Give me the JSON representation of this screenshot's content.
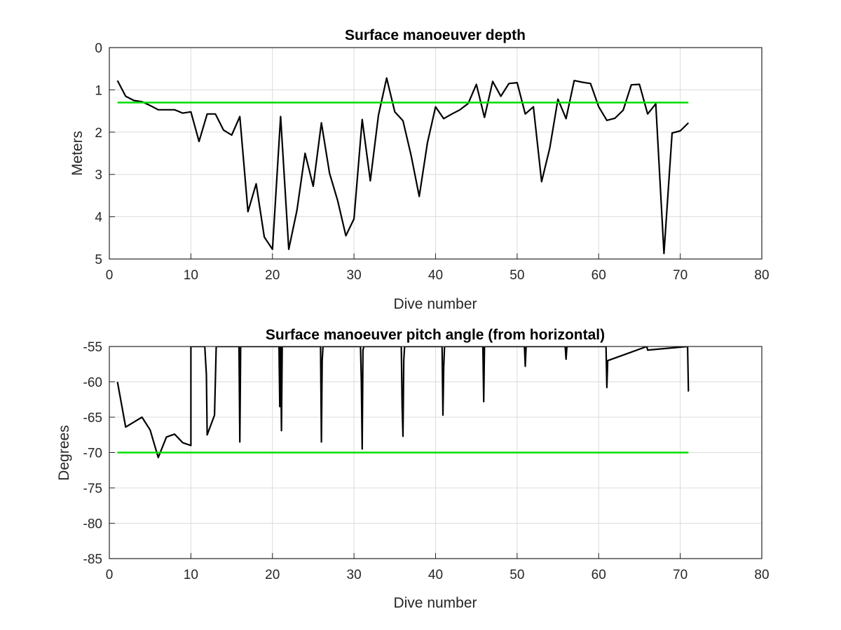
{
  "chart_data": [
    {
      "type": "line",
      "title": "Surface manoeuver depth",
      "xlabel": "Dive number",
      "ylabel": "Meters",
      "xlim": [
        0,
        80
      ],
      "ylim": [
        0,
        5
      ],
      "y_reversed": true,
      "grid": true,
      "xticks": [
        "0",
        "10",
        "20",
        "30",
        "40",
        "50",
        "60",
        "70",
        "80"
      ],
      "yticks": [
        "0",
        "1",
        "2",
        "3",
        "4",
        "5"
      ],
      "series": [
        {
          "color": "#000000",
          "x": [
            1,
            2,
            3,
            4,
            5,
            6,
            7,
            8,
            9,
            10,
            11,
            12,
            13,
            14,
            15,
            16,
            17,
            18,
            19,
            20,
            21,
            22,
            23,
            24,
            25,
            26,
            27,
            28,
            29,
            30,
            31,
            32,
            33,
            34,
            35,
            36,
            37,
            38,
            39,
            40,
            41,
            42,
            43,
            44,
            45,
            46,
            47,
            48,
            49,
            50,
            51,
            52,
            53,
            54,
            55,
            56,
            57,
            58,
            59,
            60,
            61,
            62,
            63,
            64,
            65,
            66,
            67,
            68,
            69,
            70,
            71
          ],
          "y": [
            0.78,
            1.15,
            1.25,
            1.28,
            1.37,
            1.47,
            1.47,
            1.47,
            1.55,
            1.52,
            2.22,
            1.57,
            1.57,
            1.95,
            2.07,
            1.63,
            3.88,
            3.22,
            4.48,
            4.77,
            1.63,
            4.77,
            3.85,
            2.5,
            3.28,
            1.78,
            2.97,
            3.62,
            4.45,
            4.05,
            1.7,
            3.15,
            1.6,
            0.72,
            1.52,
            1.73,
            2.55,
            3.52,
            2.25,
            1.4,
            1.68,
            1.57,
            1.47,
            1.32,
            0.87,
            1.65,
            0.8,
            1.15,
            0.85,
            0.83,
            1.57,
            1.4,
            3.17,
            2.38,
            1.22,
            1.68,
            0.78,
            0.82,
            0.85,
            1.4,
            1.72,
            1.67,
            1.48,
            0.88,
            0.87,
            1.57,
            1.33,
            4.87,
            2.02,
            1.97,
            1.78
          ]
        },
        {
          "color": "#00dd00",
          "x": [
            1,
            71
          ],
          "y": [
            1.3,
            1.3
          ]
        }
      ]
    },
    {
      "type": "line",
      "title": "Surface manoeuver pitch angle (from horizontal)",
      "xlabel": "Dive number",
      "ylabel": "Degrees",
      "xlim": [
        0,
        80
      ],
      "ylim": [
        -85,
        -55
      ],
      "grid": true,
      "xticks": [
        "0",
        "10",
        "20",
        "30",
        "40",
        "50",
        "60",
        "70",
        "80"
      ],
      "yticks": [
        "-55",
        "-60",
        "-65",
        "-70",
        "-75",
        "-80",
        "-85"
      ],
      "series": [
        {
          "color": "#000000",
          "x": [
            1,
            2,
            3,
            4,
            5,
            6,
            7,
            8,
            9,
            10,
            10,
            11.7,
            11.9,
            12,
            12.9,
            13.1,
            13.2,
            15.9,
            16,
            16.1,
            16.2,
            20.8,
            20.9,
            21,
            21.1,
            21.2,
            25.9,
            26,
            26.1,
            26.2,
            30.8,
            30.9,
            31,
            31.1,
            31.2,
            35.8,
            35.9,
            36,
            36.1,
            36.2,
            40.8,
            40.9,
            41,
            41.1,
            41.2,
            45.8,
            45.9,
            46,
            46.1,
            50.9,
            51,
            51.1,
            55.9,
            56,
            56.1,
            60.9,
            61,
            61.1,
            65.9,
            66,
            70.9,
            71,
            71.05
          ],
          "y": [
            -60,
            -66.4,
            -65.7,
            -65,
            -66.8,
            -70.7,
            -67.8,
            -67.4,
            -68.6,
            -69,
            -55,
            -55,
            -59,
            -67.5,
            -64.7,
            -55,
            -55,
            -55,
            -68.5,
            -55,
            -55,
            -55,
            -63.5,
            -55,
            -66.9,
            -55,
            -55,
            -68.5,
            -57,
            -55,
            -55,
            -60,
            -69.5,
            -55.5,
            -55,
            -55,
            -63.5,
            -67.7,
            -57,
            -55,
            -55,
            -64.7,
            -58,
            -55,
            -55,
            -55,
            -62.8,
            -55,
            -55,
            -55,
            -57.8,
            -55,
            -55,
            -56.8,
            -55,
            -55,
            -60.8,
            -57,
            -55,
            -55.5,
            -55,
            -61.3,
            -61.3
          ]
        },
        {
          "color": "#00dd00",
          "x": [
            1,
            71
          ],
          "y": [
            -70,
            -70
          ]
        }
      ]
    }
  ]
}
